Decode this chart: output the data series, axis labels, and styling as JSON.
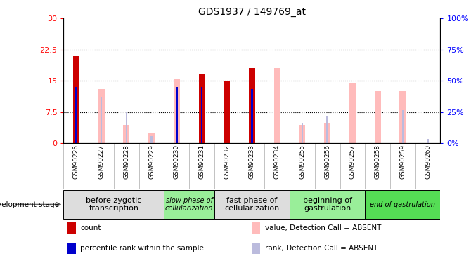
{
  "title": "GDS1937 / 149769_at",
  "samples": [
    "GSM90226",
    "GSM90227",
    "GSM90228",
    "GSM90229",
    "GSM90230",
    "GSM90231",
    "GSM90232",
    "GSM90233",
    "GSM90234",
    "GSM90255",
    "GSM90256",
    "GSM90257",
    "GSM90258",
    "GSM90259",
    "GSM90260"
  ],
  "count_values": [
    21.0,
    0.0,
    0.0,
    0.0,
    0.0,
    16.5,
    15.0,
    18.0,
    0.0,
    0.0,
    0.0,
    0.0,
    0.0,
    0.0,
    0.0
  ],
  "percentile_values": [
    13.5,
    0.0,
    0.0,
    0.0,
    13.5,
    13.5,
    0.0,
    13.0,
    0.0,
    0.0,
    0.0,
    0.0,
    0.0,
    0.0,
    0.0
  ],
  "absent_val": [
    0.0,
    13.0,
    4.5,
    2.5,
    15.5,
    0.0,
    0.0,
    0.0,
    18.0,
    4.5,
    5.0,
    14.5,
    12.5,
    12.5,
    0.0
  ],
  "absent_rank": [
    0.0,
    11.0,
    7.5,
    1.8,
    0.0,
    0.0,
    0.0,
    0.0,
    0.0,
    5.0,
    6.5,
    0.0,
    0.0,
    8.0,
    1.0
  ],
  "ylim_left": [
    0,
    30
  ],
  "ylim_right": [
    0,
    100
  ],
  "yticks_left": [
    0,
    7.5,
    15,
    22.5,
    30
  ],
  "ytick_labels_left": [
    "0",
    "7.5",
    "15",
    "22.5",
    "30"
  ],
  "yticks_right": [
    0,
    25,
    50,
    75,
    100
  ],
  "ytick_labels_right": [
    "0%",
    "25%",
    "50%",
    "75%",
    "100%"
  ],
  "grid_values": [
    7.5,
    15,
    22.5
  ],
  "color_count": "#cc0000",
  "color_percentile": "#0000cc",
  "color_absent_value": "#ffbbbb",
  "color_absent_rank": "#bbbbdd",
  "stages": [
    {
      "label": "before zygotic\ntranscription",
      "start": 0,
      "end": 3,
      "color": "#dddddd",
      "fontsize": 8,
      "italic": false
    },
    {
      "label": "slow phase of\ncellularization",
      "start": 4,
      "end": 5,
      "color": "#99ee99",
      "fontsize": 7,
      "italic": true
    },
    {
      "label": "fast phase of\ncellularization",
      "start": 6,
      "end": 8,
      "color": "#dddddd",
      "fontsize": 8,
      "italic": false
    },
    {
      "label": "beginning of\ngastrulation",
      "start": 9,
      "end": 11,
      "color": "#99ee99",
      "fontsize": 8,
      "italic": false
    },
    {
      "label": "end of gastrulation",
      "start": 12,
      "end": 14,
      "color": "#55dd55",
      "fontsize": 7,
      "italic": true
    }
  ],
  "legend_items": [
    {
      "label": "count",
      "color": "#cc0000"
    },
    {
      "label": "percentile rank within the sample",
      "color": "#0000cc"
    },
    {
      "label": "value, Detection Call = ABSENT",
      "color": "#ffbbbb"
    },
    {
      "label": "rank, Detection Call = ABSENT",
      "color": "#bbbbdd"
    }
  ]
}
